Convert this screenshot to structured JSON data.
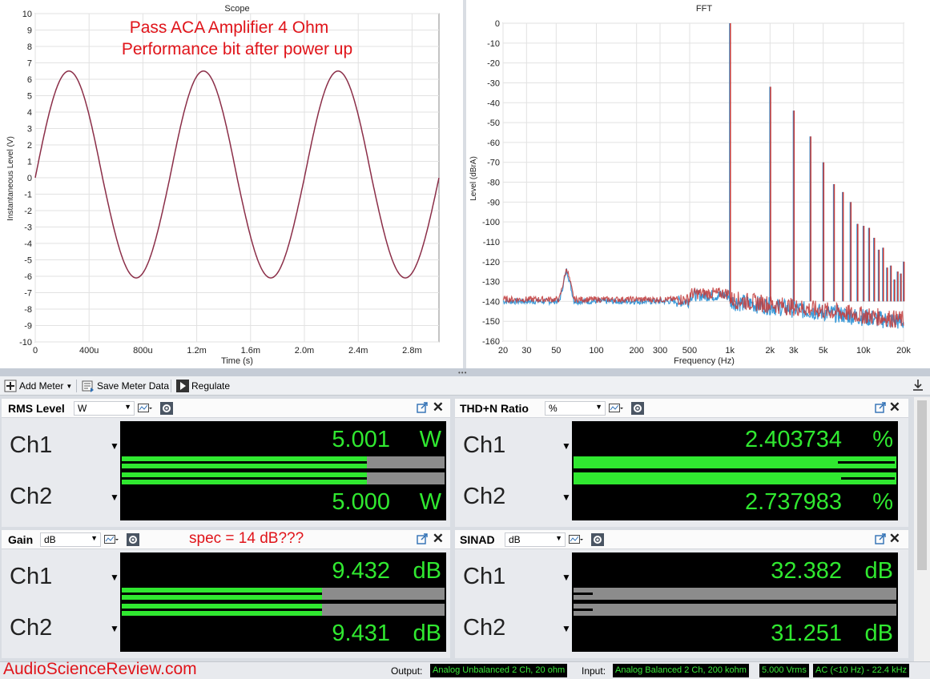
{
  "scope": {
    "panel_title": "Scope",
    "annotation_line1": "Pass ACA Amplifier 4 Ohm",
    "annotation_line2": "Performance bit after power up",
    "chart_data": {
      "type": "line",
      "title": "Scope",
      "xlabel": "Time (s)",
      "ylabel": "Instantaneous Level (V)",
      "xlim": [
        0,
        0.003
      ],
      "ylim": [
        -10,
        10
      ],
      "x_tick_labels": [
        "0",
        "400u",
        "800u",
        "1.2m",
        "1.6m",
        "2.0m",
        "2.4m",
        "2.8m"
      ],
      "x_ticks": [
        0,
        0.0004,
        0.0008,
        0.0012,
        0.0016,
        0.002,
        0.0024,
        0.0028
      ],
      "y_ticks": [
        -10,
        -9,
        -8,
        -7,
        -6,
        -5,
        -4,
        -3,
        -2,
        -1,
        0,
        1,
        2,
        3,
        4,
        5,
        6,
        7,
        8,
        9,
        10
      ],
      "grid": true,
      "series": [
        {
          "amplitude_pos": 6.5,
          "amplitude_neg": -6.1,
          "frequency_hz": 1000,
          "color": "#8b2e48"
        }
      ]
    }
  },
  "fft": {
    "panel_title": "FFT",
    "chart_data": {
      "type": "line",
      "title": "FFT",
      "xlabel": "Frequency (Hz)",
      "ylabel": "Level (dBrA)",
      "x_scale": "log",
      "xlim": [
        20,
        20000
      ],
      "ylim": [
        -160,
        0
      ],
      "x_tick_labels": [
        "20",
        "30",
        "50",
        "100",
        "200",
        "300",
        "500",
        "1k",
        "2k",
        "3k",
        "5k",
        "10k",
        "20k"
      ],
      "x_ticks": [
        20,
        30,
        50,
        100,
        200,
        300,
        500,
        1000,
        2000,
        3000,
        5000,
        10000,
        20000
      ],
      "y_ticks": [
        0,
        -10,
        -20,
        -30,
        -40,
        -50,
        -60,
        -70,
        -80,
        -90,
        -100,
        -110,
        -120,
        -130,
        -140,
        -150,
        -160
      ],
      "grid": true,
      "noise_floor": -140,
      "spur": {
        "x": 60,
        "y": -124
      },
      "harmonics": [
        {
          "x": 1000,
          "y": 0
        },
        {
          "x": 2000,
          "y": -32
        },
        {
          "x": 3000,
          "y": -44
        },
        {
          "x": 4000,
          "y": -57
        },
        {
          "x": 5000,
          "y": -70
        },
        {
          "x": 6000,
          "y": -81
        },
        {
          "x": 7000,
          "y": -85
        },
        {
          "x": 8000,
          "y": -90
        },
        {
          "x": 9000,
          "y": -101
        },
        {
          "x": 10000,
          "y": -102
        },
        {
          "x": 11000,
          "y": -103
        },
        {
          "x": 12000,
          "y": -108
        },
        {
          "x": 13000,
          "y": -114
        },
        {
          "x": 14000,
          "y": -113
        },
        {
          "x": 15000,
          "y": -123
        },
        {
          "x": 16000,
          "y": -122
        },
        {
          "x": 17000,
          "y": -129
        },
        {
          "x": 18000,
          "y": -125
        },
        {
          "x": 19000,
          "y": -126
        },
        {
          "x": 20000,
          "y": -120
        }
      ],
      "series": [
        {
          "color": "#3a9ad9"
        },
        {
          "color": "#c23b3b"
        }
      ]
    }
  },
  "toolbar": {
    "add_meter": "Add Meter",
    "save_meter_data": "Save Meter Data",
    "regulate": "Regulate"
  },
  "meters": {
    "rms": {
      "title": "RMS Level",
      "unit": "W",
      "ch1": {
        "label": "Ch1",
        "value": "5.001",
        "unit": "W",
        "fill": 0.76
      },
      "ch2": {
        "label": "Ch2",
        "value": "5.000",
        "unit": "W",
        "fill": 0.76
      }
    },
    "thd": {
      "title": "THD+N Ratio",
      "unit": "%",
      "ch1": {
        "label": "Ch1",
        "value": "2.403734",
        "unit": "%",
        "fill": 1.0,
        "marker_start": 0.82
      },
      "ch2": {
        "label": "Ch2",
        "value": "2.737983",
        "unit": "%",
        "fill": 1.0,
        "marker_start": 0.83
      }
    },
    "gain": {
      "title": "Gain",
      "unit": "dB",
      "note": "spec = 14 dB???",
      "ch1": {
        "label": "Ch1",
        "value": "9.432",
        "unit": "dB",
        "fill": 0.62
      },
      "ch2": {
        "label": "Ch2",
        "value": "9.431",
        "unit": "dB",
        "fill": 0.62
      }
    },
    "sinad": {
      "title": "SINAD",
      "unit": "dB",
      "ch1": {
        "label": "Ch1",
        "value": "32.382",
        "unit": "dB",
        "fill": 0.0,
        "marker_end": 0.06
      },
      "ch2": {
        "label": "Ch2",
        "value": "31.251",
        "unit": "dB",
        "fill": 0.0,
        "marker_end": 0.06
      }
    }
  },
  "status": {
    "brand": "AudioScienceReview.com",
    "output_label": "Output:",
    "output_value": "Analog Unbalanced 2 Ch, 20 ohm",
    "input_label": "Input:",
    "input_value": "Analog Balanced 2 Ch, 200 kohm",
    "level_value": "5.000 Vrms",
    "coupling_value": "AC (<10 Hz) - 22.4 kHz"
  }
}
